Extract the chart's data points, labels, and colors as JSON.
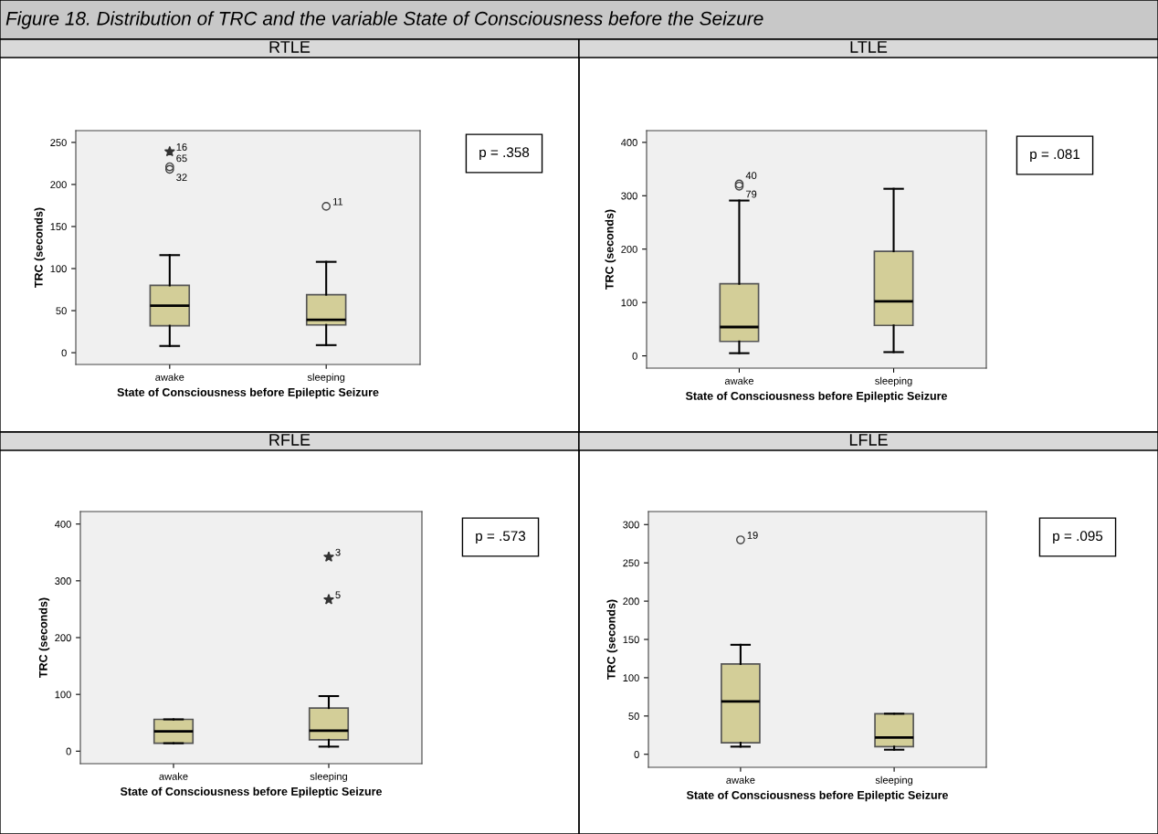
{
  "chart_data": [
    {
      "type": "other",
      "title": "Figure 18. Distribution of TRC and the variable State of Consciousness before the Seizure"
    },
    {
      "type": "box",
      "title": "RTLE",
      "xlabel": "State of Consciousness before Epileptic Seizure",
      "ylabel": "TRC (seconds)",
      "categories": [
        "awake",
        "sleeping"
      ],
      "series": [
        {
          "type": "box",
          "color": "#d3ce98",
          "boxes": [
            {
              "low": 8,
              "q1": 32,
              "median": 56,
              "q3": 80,
              "high": 116
            },
            {
              "low": 9,
              "q1": 33,
              "median": 39,
              "q3": 69,
              "high": 108
            }
          ]
        },
        {
          "type": "scatter",
          "marker": "circle",
          "color": "#444444",
          "x": [
            "awake",
            "awake",
            "sleeping"
          ],
          "values": [
            221,
            218,
            174
          ]
        },
        {
          "type": "scatter",
          "marker": "star",
          "color": "#333333",
          "x": [
            "awake"
          ],
          "values": [
            239
          ]
        }
      ],
      "ylim": [
        -14,
        264
      ],
      "yticks": [
        0,
        50,
        100,
        150,
        200,
        250
      ],
      "grid": false,
      "annotations": [
        "p = .358",
        {
          "text": "16",
          "x": "awake",
          "y": 239
        },
        {
          "text": "65",
          "x": "awake",
          "y": 221
        },
        {
          "text": "32",
          "x": "awake",
          "y": 218
        },
        {
          "text": "11",
          "x": "sleeping",
          "y": 174
        }
      ]
    },
    {
      "type": "box",
      "title": "LTLE",
      "xlabel": "State of Consciousness before Epileptic Seizure",
      "ylabel": "TRC (seconds)",
      "categories": [
        "awake",
        "sleeping"
      ],
      "series": [
        {
          "type": "box",
          "color": "#d3ce98",
          "boxes": [
            {
              "low": 5,
              "q1": 27,
              "median": 54,
              "q3": 135,
              "high": 291
            },
            {
              "low": 7,
              "q1": 57,
              "median": 102,
              "q3": 196,
              "high": 313
            }
          ]
        },
        {
          "type": "scatter",
          "marker": "circle",
          "color": "#444444",
          "x": [
            "awake",
            "awake"
          ],
          "values": [
            322,
            318
          ]
        }
      ],
      "ylim": [
        -23,
        422
      ],
      "yticks": [
        0,
        100,
        200,
        300,
        400
      ],
      "grid": false,
      "annotations": [
        "p = .081",
        {
          "text": "40",
          "x": "awake",
          "y": 322
        },
        {
          "text": "79",
          "x": "awake",
          "y": 318
        }
      ]
    },
    {
      "type": "box",
      "title": "RFLE",
      "xlabel": "State of Consciousness before Epileptic Seizure",
      "ylabel": "TRC (seconds)",
      "categories": [
        "awake",
        "sleeping"
      ],
      "series": [
        {
          "type": "box",
          "color": "#d3ce98",
          "boxes": [
            {
              "low": 14,
              "q1": 14,
              "median": 35,
              "q3": 56,
              "high": 56
            },
            {
              "low": 8,
              "q1": 20,
              "median": 36,
              "q3": 76,
              "high": 97
            }
          ]
        },
        {
          "type": "scatter",
          "marker": "star",
          "color": "#333333",
          "x": [
            "sleeping",
            "sleeping"
          ],
          "values": [
            342,
            267
          ]
        }
      ],
      "ylim": [
        -22,
        422
      ],
      "yticks": [
        0,
        100,
        200,
        300,
        400
      ],
      "grid": false,
      "annotations": [
        "p = .573",
        {
          "text": "3",
          "x": "sleeping",
          "y": 342
        },
        {
          "text": "5",
          "x": "sleeping",
          "y": 267
        }
      ]
    },
    {
      "type": "box",
      "title": "LFLE",
      "xlabel": "State of Consciousness before Epileptic Seizure",
      "ylabel": "TRC (seconds)",
      "categories": [
        "awake",
        "sleeping"
      ],
      "series": [
        {
          "type": "box",
          "color": "#d3ce98",
          "boxes": [
            {
              "low": 10,
              "q1": 15,
              "median": 69,
              "q3": 118,
              "high": 143
            },
            {
              "low": 6,
              "q1": 10,
              "median": 22,
              "q3": 53,
              "high": 53
            }
          ]
        },
        {
          "type": "scatter",
          "marker": "circle",
          "color": "#444444",
          "x": [
            "awake"
          ],
          "values": [
            280
          ]
        }
      ],
      "ylim": [
        -17,
        317
      ],
      "yticks": [
        0,
        50,
        100,
        150,
        200,
        250,
        300
      ],
      "grid": false,
      "annotations": [
        "p = .095",
        {
          "text": "19",
          "x": "awake",
          "y": 280
        }
      ]
    }
  ]
}
